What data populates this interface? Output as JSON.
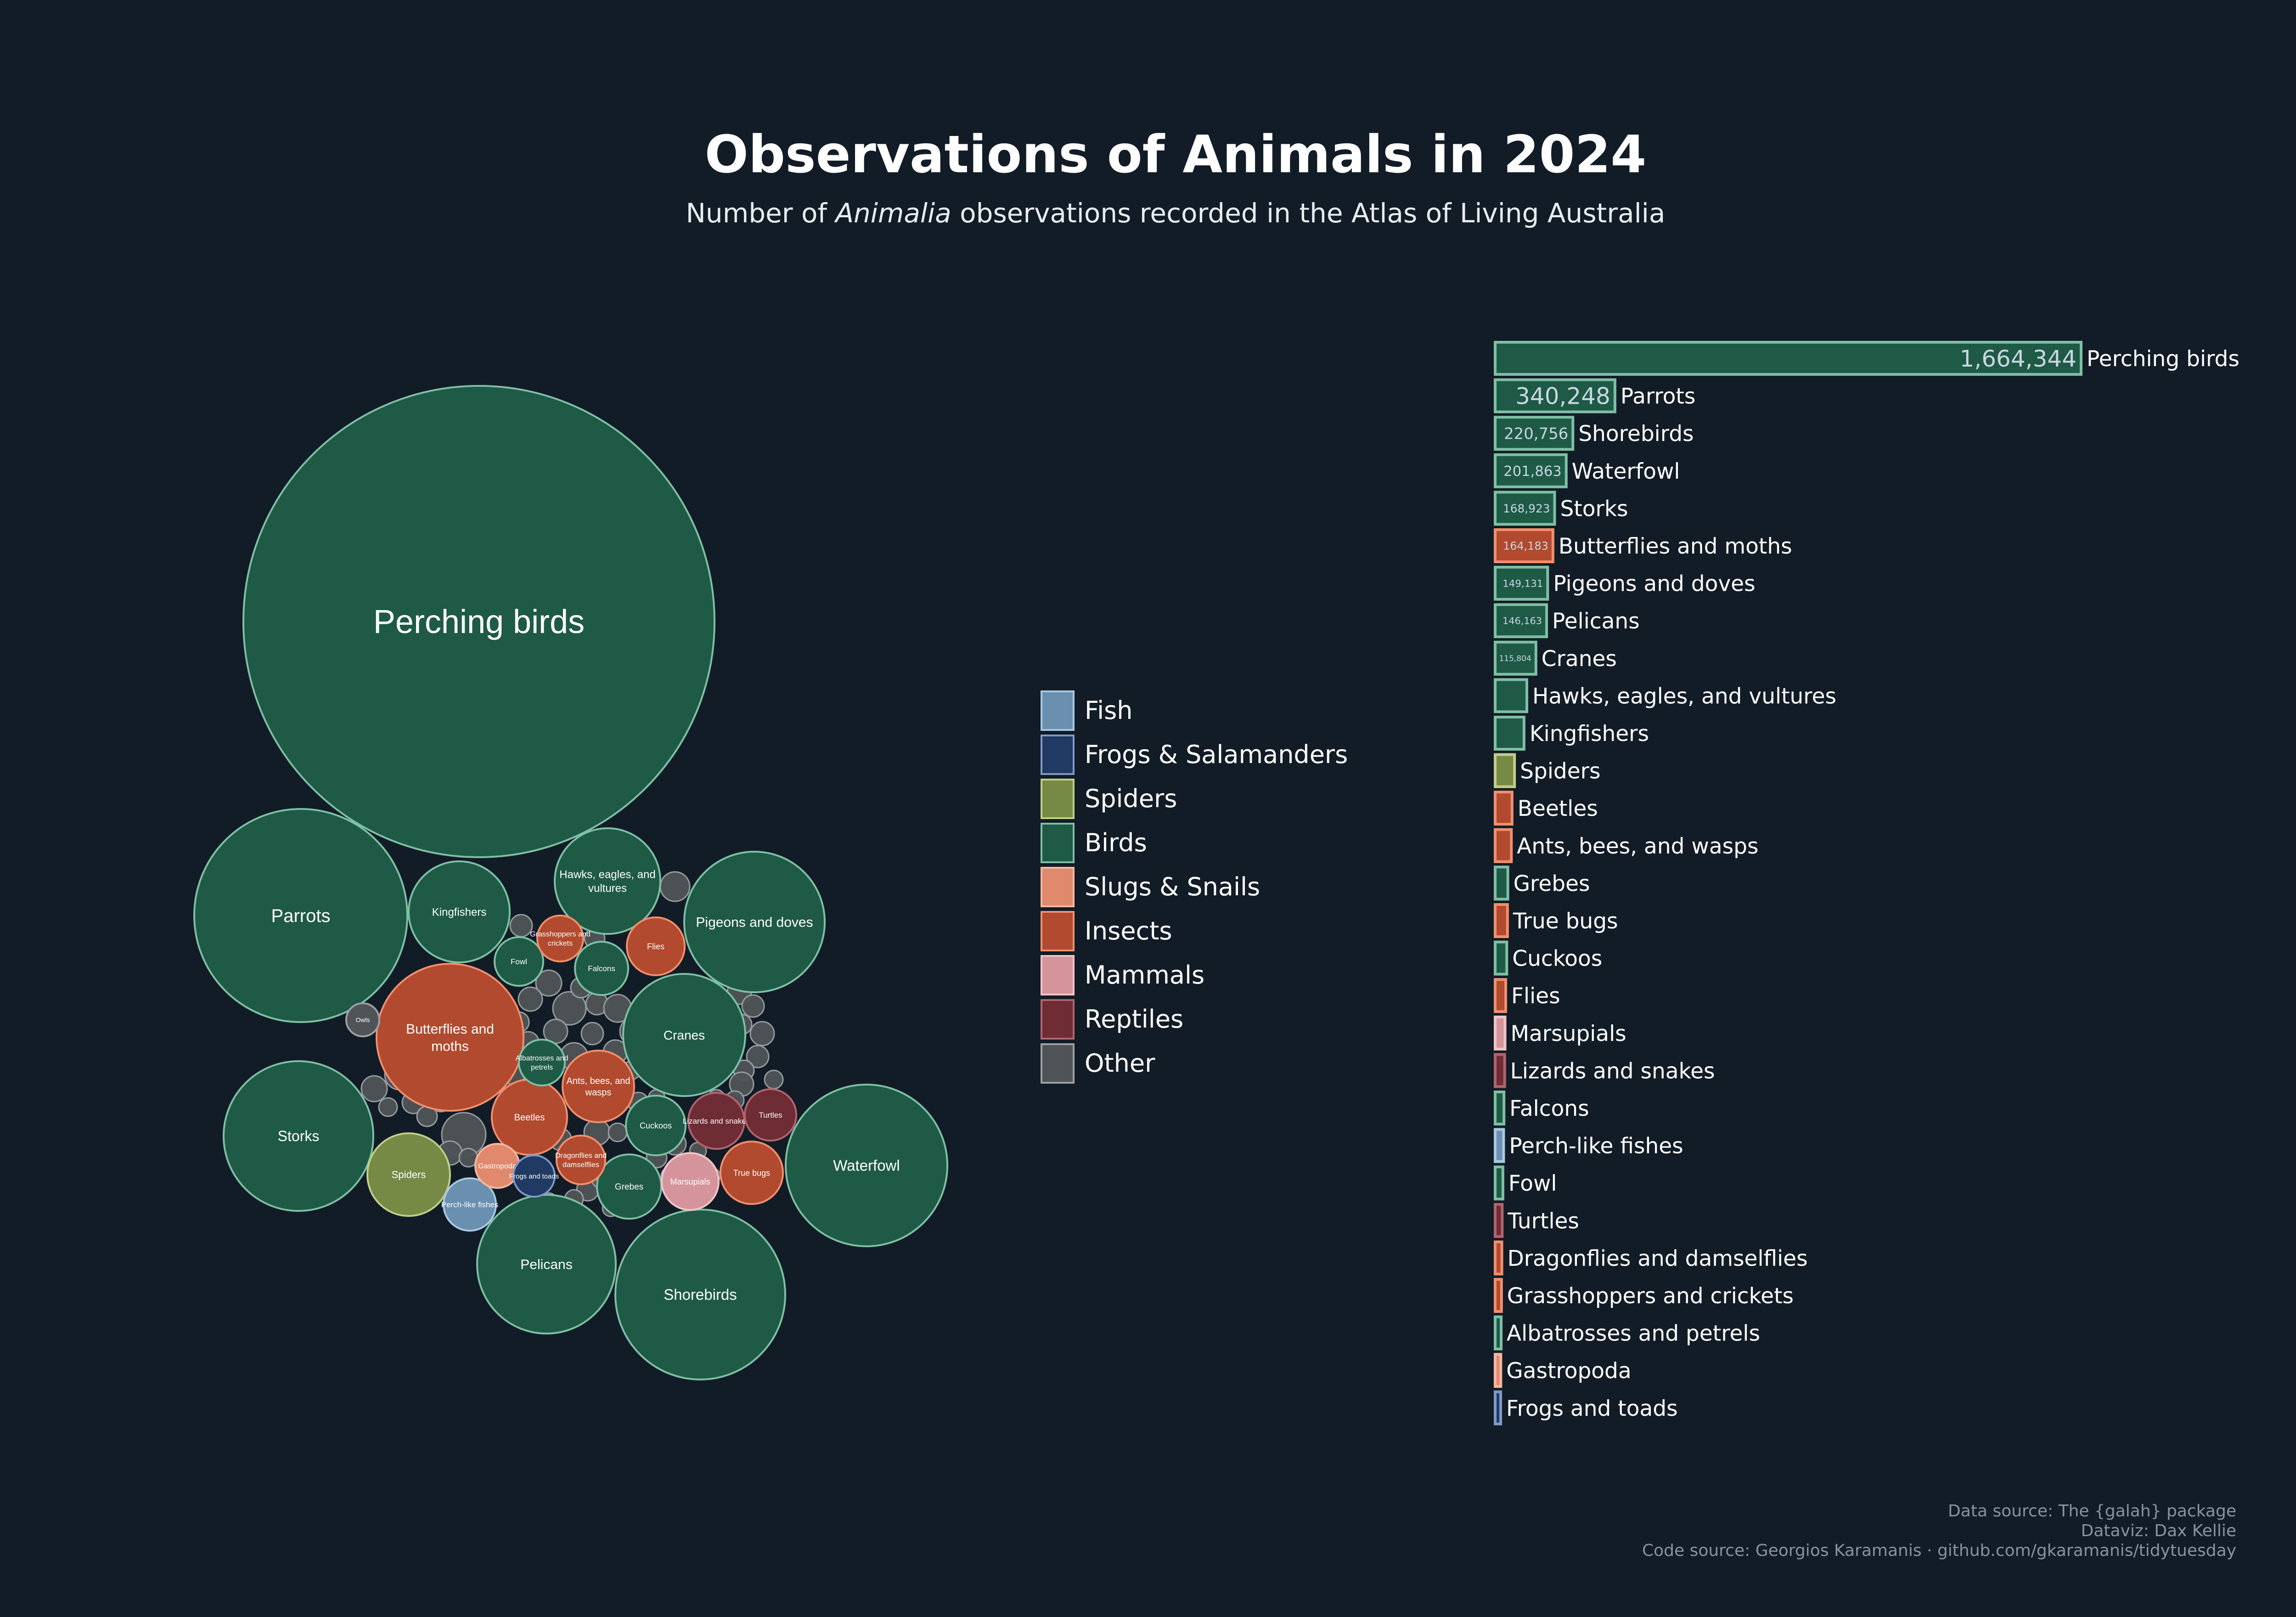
{
  "title": "Observations of Animals in 2024",
  "subtitle": {
    "before": "Number of ",
    "italic": "Animalia",
    "after": " observations recorded in the Atlas of Living Australia"
  },
  "caption": {
    "line1": "Data source: The {galah} package",
    "line2": "Dataviz: Dax Kellie",
    "line3": "Code source: Georgios Karamanis · github.com/gkaramanis/tidytuesday"
  },
  "colors": {
    "background": "#121c27",
    "Fish": "#6a8faf",
    "Frogs & Salamanders": "#213a63",
    "Spiders": "#778a45",
    "Birds": "#1e5a46",
    "Slugs & Snails": "#e0896c",
    "Insects": "#b14a2e",
    "Mammals": "#d5949b",
    "Reptiles": "#6e2c34",
    "Other": "#505457"
  },
  "chart_data": [
    {
      "type": "bubble",
      "categories_legend": [
        "Fish",
        "Frogs & Salamanders",
        "Spiders",
        "Birds",
        "Slugs & Snails",
        "Insects",
        "Mammals",
        "Reptiles",
        "Other"
      ],
      "bubbles": [
        {
          "label": "Perching birds",
          "group": "Birds",
          "value": 1664344
        },
        {
          "label": "Parrots",
          "group": "Birds",
          "value": 340248
        },
        {
          "label": "Shorebirds",
          "group": "Birds",
          "value": 220756
        },
        {
          "label": "Waterfowl",
          "group": "Birds",
          "value": 201863
        },
        {
          "label": "Storks",
          "group": "Birds",
          "value": 168923
        },
        {
          "label": "Butterflies and moths",
          "group": "Insects",
          "value": 164183
        },
        {
          "label": "Pigeons and doves",
          "group": "Birds",
          "value": 149131
        },
        {
          "label": "Pelicans",
          "group": "Birds",
          "value": 146163
        },
        {
          "label": "Cranes",
          "group": "Birds",
          "value": 115804
        },
        {
          "label": "Hawks, eagles, and vultures",
          "group": "Birds"
        },
        {
          "label": "Kingfishers",
          "group": "Birds"
        },
        {
          "label": "Spiders",
          "group": "Spiders"
        },
        {
          "label": "Beetles",
          "group": "Insects"
        },
        {
          "label": "Ants, bees, and wasps",
          "group": "Insects"
        },
        {
          "label": "Grebes",
          "group": "Birds"
        },
        {
          "label": "True bugs",
          "group": "Insects"
        },
        {
          "label": "Cuckoos",
          "group": "Birds"
        },
        {
          "label": "Flies",
          "group": "Insects"
        },
        {
          "label": "Marsupials",
          "group": "Mammals"
        },
        {
          "label": "Lizards and snakes",
          "group": "Reptiles"
        },
        {
          "label": "Falcons",
          "group": "Birds"
        },
        {
          "label": "Perch-like fishes",
          "group": "Fish"
        },
        {
          "label": "Fowl",
          "group": "Birds"
        },
        {
          "label": "Turtles",
          "group": "Reptiles"
        },
        {
          "label": "Dragonflies and damselflies",
          "group": "Insects"
        },
        {
          "label": "Grasshoppers and crickets",
          "group": "Insects"
        },
        {
          "label": "Albatrosses and petrels",
          "group": "Birds"
        },
        {
          "label": "Gastropoda",
          "group": "Slugs & Snails"
        },
        {
          "label": "Frogs and toads",
          "group": "Frogs & Salamanders"
        },
        {
          "label": "Owls",
          "group": "Other"
        }
      ]
    },
    {
      "type": "bar",
      "orientation": "horizontal",
      "categories": [
        "Perching birds",
        "Parrots",
        "Shorebirds",
        "Waterfowl",
        "Storks",
        "Butterflies and moths",
        "Pigeons and doves",
        "Pelicans",
        "Cranes",
        "Hawks, eagles, and vultures",
        "Kingfishers",
        "Spiders",
        "Beetles",
        "Ants, bees, and wasps",
        "Grebes",
        "True bugs",
        "Cuckoos",
        "Flies",
        "Marsupials",
        "Lizards and snakes",
        "Falcons",
        "Perch-like fishes",
        "Fowl",
        "Turtles",
        "Dragonflies and damselflies",
        "Grasshoppers and crickets",
        "Albatrosses and petrels",
        "Gastropoda",
        "Frogs and toads"
      ],
      "groups": [
        "Birds",
        "Birds",
        "Birds",
        "Birds",
        "Birds",
        "Insects",
        "Birds",
        "Birds",
        "Birds",
        "Birds",
        "Birds",
        "Spiders",
        "Insects",
        "Insects",
        "Birds",
        "Insects",
        "Birds",
        "Insects",
        "Mammals",
        "Reptiles",
        "Birds",
        "Fish",
        "Birds",
        "Reptiles",
        "Insects",
        "Insects",
        "Birds",
        "Slugs & Snails",
        "Frogs & Salamanders"
      ],
      "values": [
        1664344,
        340248,
        220756,
        201863,
        168923,
        164183,
        149131,
        146163,
        115804,
        90000,
        82000,
        55000,
        48000,
        46000,
        36000,
        35000,
        33000,
        30000,
        28000,
        27000,
        25000,
        24000,
        22000,
        20000,
        19000,
        18000,
        17000,
        16000,
        15000
      ],
      "value_labels": [
        "1,664,344",
        "340,248",
        "220,756",
        "201,863",
        "168,923",
        "164,183",
        "149,131",
        "146,163",
        "115,804",
        "",
        "",
        "",
        "",
        "",
        "",
        "",
        "",
        "",
        "",
        "",
        "",
        "",
        "",
        "",
        "",
        "",
        "",
        "",
        ""
      ]
    }
  ]
}
